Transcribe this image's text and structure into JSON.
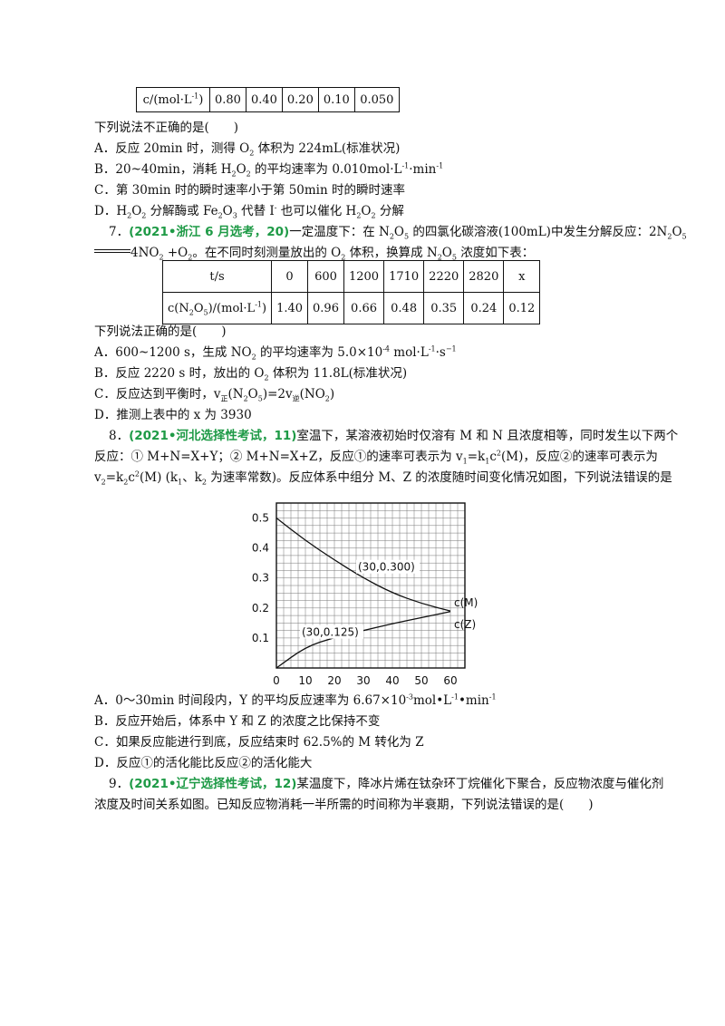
{
  "table1": {
    "header": "c/(mol·L",
    "values": [
      "0.80",
      "0.40",
      "0.20",
      "0.10",
      "0.050"
    ]
  },
  "q6": {
    "prompt": "下列说法不正确的是(　　)",
    "options": [
      [
        "A．反应 20min 时，测得 O",
        "2",
        " 体积为 224mL(标准状况)"
      ],
      [
        "B．20~40min，消耗 H",
        "2",
        "O",
        "2",
        " 的平均速率为 0.010mol·L",
        "-1",
        "·min",
        "-1"
      ],
      [
        "C．第 30min 时的瞬时速率小于第 50min 时的瞬时速率"
      ],
      [
        "D．H",
        "2",
        "O",
        "2",
        " 分解酶或 Fe",
        "2",
        "O",
        "3",
        " 代替 I",
        "-",
        " 也可以催化 H",
        "2",
        "O",
        "2",
        " 分解"
      ]
    ]
  },
  "q7": {
    "num": "7．",
    "source": "(2021•浙江 6 月选考，20)",
    "line1a": "一定温度下：在 N",
    "line1b": " 的四氯化碳溶液(100mL)中发生分解反应：2N",
    "line2a": "4NO",
    "line2b": " +O",
    "line2c": "。在不同时刻测量放出的 O",
    "line2d": " 体积，换算成 N",
    "line2e": " 浓度如下表：",
    "table": {
      "h1": "t/s",
      "t": [
        "0",
        "600",
        "1200",
        "1710",
        "2220",
        "2820",
        "x"
      ],
      "h2a": "c(N",
      "h2b": "O",
      "h2c": ")/(mol·L",
      "h2d": ")",
      "c": [
        "1.40",
        "0.96",
        "0.66",
        "0.48",
        "0.35",
        "0.24",
        "0.12"
      ]
    },
    "prompt": "下列说法正确的是(　　)",
    "A": "A．600~1200 s，生成 NO",
    "A2": " 的平均速率为 5.0×10",
    "A3": " mol·L",
    "A4": "·s",
    "B": "B．反应 2220 s 时，放出的 O",
    "B2": " 体积为 11.8L(标准状况)",
    "C": "C．反应达到平衡时，v",
    "C2": "(N",
    "C3": "O",
    "C4": ")=2v",
    "C5": "(NO",
    "C6": ")",
    "D": "D．推测上表中的 x 为 3930"
  },
  "q8": {
    "num": "8．",
    "source": "(2021•河北选择性考试，11)",
    "line1": "室温下，某溶液初始时仅溶有 M 和 N 且浓度相等，同时发生以下两个",
    "line2a": "反应：① M+N=X+Y；② M+N=X+Z，反应①的速率可表示为 v",
    "line2b": "=k",
    "line2c": "c",
    "line2d": "(M)，反应②的速率可表示为",
    "line3a": "v",
    "line3b": "=k",
    "line3c": "c",
    "line3d": "(M) (k",
    "line3e": "、k",
    "line3f": " 为速率常数)。反应体系中组分 M、Z 的浓度随时间变化情况如图，下列说法错误的是",
    "options": {
      "A1": "A．0～30min 时间段内，Y 的平均反应速率为 6.67×10",
      "A2": "mol•L",
      "A3": "•min",
      "B": "B．反应开始后，体系中 Y 和 Z 的浓度之比保持不变",
      "C": "C．如果反应能进行到底，反应结束时 62.5%的 M 转化为 Z",
      "D": "D．反应①的活化能比反应②的活化能大"
    }
  },
  "q9": {
    "num": "9．",
    "source": "(2021•辽宁选择性考试，12)",
    "line1": "某温度下，降冰片烯在钛杂环丁烷催化下聚合，反应物浓度与催化剂",
    "line2": "浓度及时间关系如图。已知反应物消耗一半所需的时间称为半衰期，下列说法错误的是(　　)"
  },
  "chart_data": {
    "type": "line",
    "x_ticks": [
      "0",
      "10",
      "20",
      "30",
      "40",
      "50",
      "60"
    ],
    "y_ticks": [
      "0.1",
      "0.2",
      "0.3",
      "0.4",
      "0.5"
    ],
    "xlim": [
      0,
      65
    ],
    "ylim": [
      0,
      0.55
    ],
    "series": [
      {
        "name": "c(M)",
        "x": [
          0,
          10,
          20,
          30,
          40,
          50,
          60
        ],
        "y": [
          0.5,
          0.425,
          0.36,
          0.3,
          0.25,
          0.215,
          0.19
        ]
      },
      {
        "name": "c(Z)",
        "x": [
          0,
          10,
          20,
          30,
          40,
          50,
          60
        ],
        "y": [
          0,
          0.07,
          0.102,
          0.125,
          0.148,
          0.168,
          0.188
        ]
      }
    ],
    "annotations": [
      {
        "text": "(30,0.300)",
        "x": 30,
        "y": 0.3
      },
      {
        "text": "(30,0.125)",
        "x": 30,
        "y": 0.125
      }
    ]
  }
}
